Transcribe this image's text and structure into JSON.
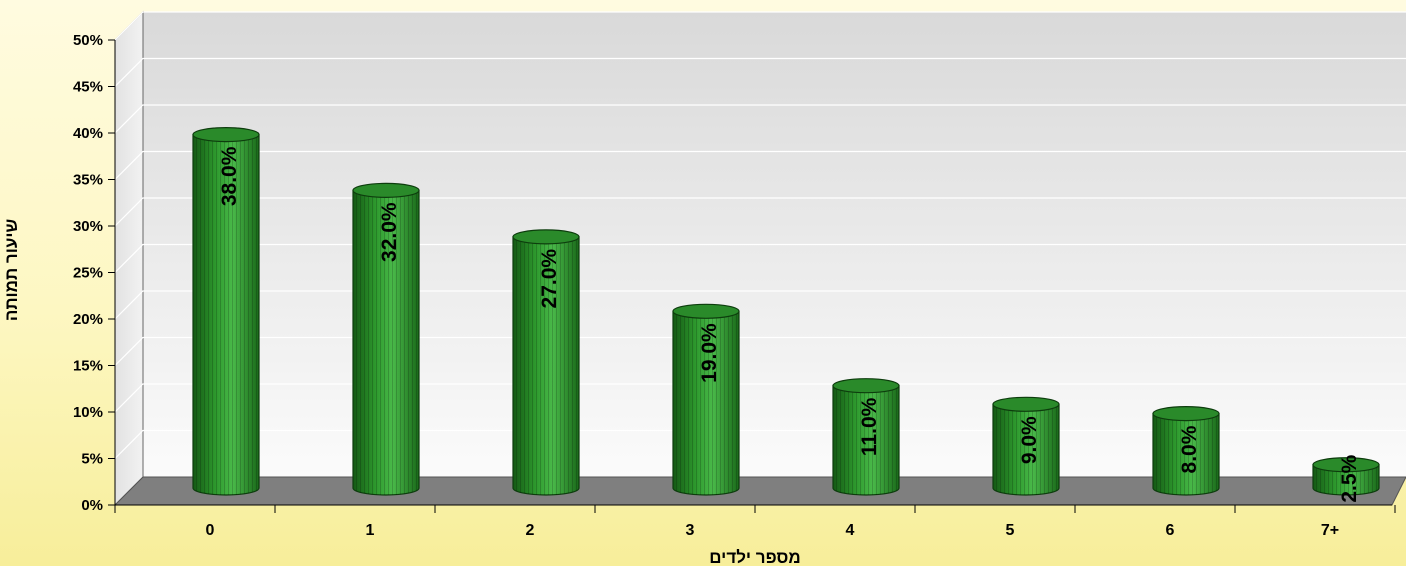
{
  "chart_data": {
    "type": "bar",
    "title": "",
    "xlabel": "מספר ילדים",
    "ylabel": "שיעור תמותה",
    "categories": [
      "0",
      "1",
      "2",
      "3",
      "4",
      "5",
      "6",
      "7+"
    ],
    "values": [
      38.0,
      32.0,
      27.0,
      19.0,
      11.0,
      9.0,
      8.0,
      2.5
    ],
    "value_labels": [
      "38.0%",
      "32.0%",
      "27.0%",
      "19.0%",
      "11.0%",
      "9.0%",
      "8.0%",
      "2.5%"
    ],
    "ylim": [
      0,
      50
    ],
    "y_ticks": [
      "0%",
      "5%",
      "10%",
      "15%",
      "20%",
      "25%",
      "30%",
      "35%",
      "40%",
      "45%",
      "50%"
    ],
    "grid": true,
    "legend": "none",
    "bar_style": "3d-cylinder",
    "colors": {
      "bar": "#2e9a2e",
      "bar_dark": "#145a14",
      "bar_light": "#5fcf5f",
      "floor": "#7f7f7f",
      "wall_top": "#d8d8d8",
      "wall_bottom": "#ffffff",
      "grid": "#ffffff"
    }
  }
}
